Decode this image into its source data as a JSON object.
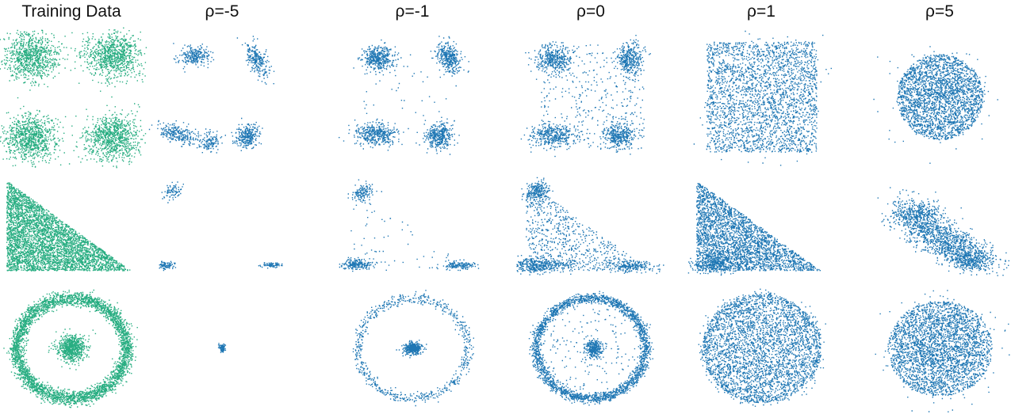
{
  "figure": {
    "columns": [
      {
        "title": "Training Data",
        "role": "training"
      },
      {
        "title": "ρ=-5",
        "rho": -5
      },
      {
        "title": "ρ=-1",
        "rho": -1
      },
      {
        "title": "ρ=0",
        "rho": 0
      },
      {
        "title": "ρ=1",
        "rho": 1
      },
      {
        "title": "ρ=5",
        "rho": 5
      }
    ],
    "rows": [
      {
        "dataset": "four-gaussians"
      },
      {
        "dataset": "triangle"
      },
      {
        "dataset": "ring-and-center"
      }
    ],
    "colors": {
      "training": "#27ad81",
      "generated": "#1f77b4",
      "background": "#ffffff"
    }
  },
  "chart_data": {
    "type": "scatter",
    "axes_visible": false,
    "grid": false,
    "legend": "none",
    "panels": [
      {
        "row": 0,
        "col": 0,
        "series": "training",
        "components": [
          {
            "shape": "gaussian",
            "cx": -1,
            "cy": 1,
            "sx": 0.34,
            "sy": 0.28,
            "n": 900
          },
          {
            "shape": "gaussian",
            "cx": 1,
            "cy": 1,
            "sx": 0.34,
            "sy": 0.28,
            "n": 900
          },
          {
            "shape": "gaussian",
            "cx": -1,
            "cy": -1,
            "sx": 0.34,
            "sy": 0.28,
            "n": 900
          },
          {
            "shape": "gaussian",
            "cx": 1,
            "cy": -1,
            "sx": 0.34,
            "sy": 0.28,
            "n": 900
          }
        ]
      },
      {
        "row": 0,
        "col": 1,
        "series": "generated",
        "components": [
          {
            "shape": "gaussian",
            "cx": -0.7,
            "cy": 1.0,
            "sx": 0.18,
            "sy": 0.12,
            "n": 260
          },
          {
            "shape": "gaussian",
            "cx": 0.85,
            "cy": 0.9,
            "sx": 0.11,
            "sy": 0.22,
            "rot": 0.5,
            "n": 260
          },
          {
            "shape": "gaussian",
            "cx": -1.1,
            "cy": -0.9,
            "sx": 0.28,
            "sy": 0.1,
            "rot": -0.3,
            "n": 260
          },
          {
            "shape": "gaussian",
            "cx": -0.3,
            "cy": -1.1,
            "sx": 0.1,
            "sy": 0.12,
            "n": 120
          },
          {
            "shape": "gaussian",
            "cx": 0.6,
            "cy": -0.95,
            "sx": 0.16,
            "sy": 0.12,
            "rot": 0.6,
            "n": 300
          }
        ]
      },
      {
        "row": 0,
        "col": 2,
        "series": "generated",
        "components": [
          {
            "shape": "gaussian",
            "cx": -0.85,
            "cy": 0.95,
            "sx": 0.2,
            "sy": 0.15,
            "n": 420
          },
          {
            "shape": "gaussian",
            "cx": 0.9,
            "cy": 0.95,
            "sx": 0.13,
            "sy": 0.2,
            "rot": 0.4,
            "n": 360
          },
          {
            "shape": "gaussian",
            "cx": -0.9,
            "cy": -0.9,
            "sx": 0.25,
            "sy": 0.13,
            "n": 420
          },
          {
            "shape": "gaussian",
            "cx": 0.65,
            "cy": -0.95,
            "sx": 0.17,
            "sy": 0.15,
            "rot": 0.6,
            "n": 380
          },
          {
            "shape": "uniform",
            "x0": -1.2,
            "x1": 1.2,
            "y0": -1.2,
            "y1": 1.2,
            "n": 60
          }
        ]
      },
      {
        "row": 0,
        "col": 3,
        "series": "generated",
        "components": [
          {
            "shape": "gaussian",
            "cx": -0.9,
            "cy": 0.95,
            "sx": 0.22,
            "sy": 0.16,
            "n": 380
          },
          {
            "shape": "gaussian",
            "cx": 0.95,
            "cy": 0.95,
            "sx": 0.15,
            "sy": 0.2,
            "n": 340
          },
          {
            "shape": "gaussian",
            "cx": -0.95,
            "cy": -0.95,
            "sx": 0.28,
            "sy": 0.14,
            "n": 380
          },
          {
            "shape": "gaussian",
            "cx": 0.7,
            "cy": -0.95,
            "sx": 0.18,
            "sy": 0.14,
            "n": 340
          },
          {
            "shape": "uniform",
            "x0": -1.3,
            "x1": 1.3,
            "y0": -1.3,
            "y1": 1.3,
            "n": 420
          }
        ]
      },
      {
        "row": 0,
        "col": 4,
        "series": "generated",
        "components": [
          {
            "shape": "uniform",
            "x0": -1.35,
            "x1": 1.35,
            "y0": -1.35,
            "y1": 1.35,
            "n": 2600
          },
          {
            "shape": "gaussian",
            "cx": 0,
            "cy": 0,
            "sx": 0.9,
            "sy": 0.9,
            "n": 200
          }
        ]
      },
      {
        "row": 0,
        "col": 5,
        "series": "generated",
        "components": [
          {
            "shape": "disc",
            "cx": 0,
            "cy": 0,
            "r": 1.05,
            "n": 2400
          },
          {
            "shape": "gaussian",
            "cx": 0,
            "cy": 0,
            "sx": 0.6,
            "sy": 0.5,
            "n": 300
          }
        ]
      },
      {
        "row": 1,
        "col": 0,
        "series": "training",
        "components": [
          {
            "shape": "triangle",
            "n": 4200
          }
        ]
      },
      {
        "row": 1,
        "col": 1,
        "series": "generated",
        "components": [
          {
            "shape": "gaussian",
            "cx": 0.12,
            "cy": 0.88,
            "sx": 0.035,
            "sy": 0.045,
            "rot": -0.6,
            "n": 80
          },
          {
            "shape": "gaussian",
            "cx": 0.07,
            "cy": 0.06,
            "sx": 0.03,
            "sy": 0.02,
            "n": 90
          },
          {
            "shape": "gaussian",
            "cx": 0.92,
            "cy": 0.06,
            "sx": 0.04,
            "sy": 0.015,
            "n": 80
          }
        ]
      },
      {
        "row": 1,
        "col": 2,
        "series": "generated",
        "components": [
          {
            "shape": "gaussian",
            "cx": 0.12,
            "cy": 0.86,
            "sx": 0.04,
            "sy": 0.05,
            "rot": -0.6,
            "n": 140
          },
          {
            "shape": "gaussian",
            "cx": 0.08,
            "cy": 0.07,
            "sx": 0.06,
            "sy": 0.03,
            "n": 220
          },
          {
            "shape": "gaussian",
            "cx": 0.9,
            "cy": 0.06,
            "sx": 0.07,
            "sy": 0.02,
            "n": 150
          },
          {
            "shape": "triangle",
            "n": 60
          }
        ]
      },
      {
        "row": 1,
        "col": 3,
        "series": "generated",
        "components": [
          {
            "shape": "gaussian",
            "cx": 0.1,
            "cy": 0.88,
            "sx": 0.05,
            "sy": 0.06,
            "rot": -0.6,
            "n": 220
          },
          {
            "shape": "gaussian",
            "cx": 0.1,
            "cy": 0.06,
            "sx": 0.12,
            "sy": 0.04,
            "n": 420
          },
          {
            "shape": "gaussian",
            "cx": 0.85,
            "cy": 0.05,
            "sx": 0.1,
            "sy": 0.03,
            "n": 220
          },
          {
            "shape": "triangle",
            "n": 700
          }
        ]
      },
      {
        "row": 1,
        "col": 4,
        "series": "generated",
        "components": [
          {
            "shape": "triangle",
            "n": 2900
          },
          {
            "shape": "gaussian",
            "cx": 0.15,
            "cy": 0.08,
            "sx": 0.12,
            "sy": 0.05,
            "n": 300
          }
        ]
      },
      {
        "row": 1,
        "col": 5,
        "series": "generated",
        "components": [
          {
            "shape": "gaussian",
            "cx": 0.35,
            "cy": 0.6,
            "sx": 0.12,
            "sy": 0.1,
            "rot": -0.6,
            "n": 600
          },
          {
            "shape": "gaussian",
            "cx": 0.6,
            "cy": 0.3,
            "sx": 0.18,
            "sy": 0.09,
            "rot": -0.6,
            "n": 900
          },
          {
            "shape": "gaussian",
            "cx": 0.78,
            "cy": 0.12,
            "sx": 0.09,
            "sy": 0.06,
            "n": 350
          }
        ]
      },
      {
        "row": 2,
        "col": 0,
        "series": "training",
        "components": [
          {
            "shape": "ring",
            "r": 1.0,
            "w": 0.07,
            "n": 3600
          },
          {
            "shape": "gaussian",
            "cx": 0,
            "cy": 0,
            "sx": 0.13,
            "sy": 0.13,
            "n": 700
          }
        ]
      },
      {
        "row": 2,
        "col": 1,
        "series": "generated",
        "components": [
          {
            "shape": "gaussian",
            "cx": 0,
            "cy": 0,
            "sx": 0.025,
            "sy": 0.045,
            "n": 90
          }
        ]
      },
      {
        "row": 2,
        "col": 2,
        "series": "generated",
        "components": [
          {
            "shape": "ring",
            "r": 1.0,
            "w": 0.05,
            "n": 700
          },
          {
            "shape": "gaussian",
            "cx": 0,
            "cy": 0,
            "sx": 0.08,
            "sy": 0.06,
            "n": 420
          }
        ]
      },
      {
        "row": 2,
        "col": 3,
        "series": "generated",
        "components": [
          {
            "shape": "ring",
            "r": 1.0,
            "w": 0.05,
            "n": 2300
          },
          {
            "shape": "gaussian",
            "cx": 0.05,
            "cy": 0,
            "sx": 0.08,
            "sy": 0.08,
            "n": 300
          },
          {
            "shape": "disc",
            "cx": 0,
            "cy": 0,
            "r": 0.95,
            "n": 180
          }
        ]
      },
      {
        "row": 2,
        "col": 4,
        "series": "generated",
        "components": [
          {
            "shape": "disc",
            "cx": 0,
            "cy": 0,
            "r": 1.08,
            "n": 3200
          },
          {
            "shape": "ring",
            "r": 1.05,
            "w": 0.06,
            "n": 400
          }
        ]
      },
      {
        "row": 2,
        "col": 5,
        "series": "generated",
        "components": [
          {
            "shape": "disc",
            "cx": 0,
            "cy": 0,
            "r": 0.95,
            "n": 2600
          },
          {
            "shape": "gaussian",
            "cx": 0,
            "cy": 0,
            "sx": 0.45,
            "sy": 0.45,
            "n": 600
          }
        ]
      }
    ]
  }
}
